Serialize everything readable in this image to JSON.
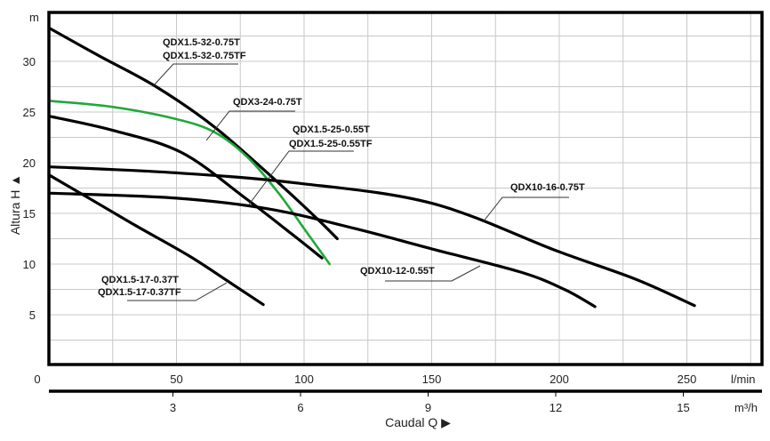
{
  "chart_data": {
    "type": "line",
    "title": "",
    "xlabel": "Caudal Q ▶",
    "ylabel": "Altura H ▲",
    "y_unit": "m",
    "x_unit": "l/min",
    "x2_unit": "m³/h",
    "xlim": [
      0,
      280
    ],
    "ylim": [
      0,
      35
    ],
    "grid": true,
    "x_ticks": [
      "0",
      "50",
      "100",
      "150",
      "200",
      "250"
    ],
    "x_tick_values": [
      0,
      50,
      100,
      150,
      200,
      250
    ],
    "x2_ticks": [
      "3",
      "6",
      "9",
      "12",
      "15"
    ],
    "x2_tick_values": [
      3,
      6,
      9,
      12,
      15
    ],
    "y_ticks": [
      "5",
      "10",
      "15",
      "20",
      "25",
      "30"
    ],
    "y_tick_values": [
      5,
      10,
      15,
      20,
      25,
      30
    ],
    "series": [
      {
        "name": "QDX1.5-32-0.75T / QDX1.5-32-0.75TF",
        "labels": [
          "QDX1.5-32-0.75T",
          "QDX1.5-32-0.75TF"
        ],
        "color": "#000000",
        "x": [
          0,
          20,
          42,
          65,
          90,
          105,
          113
        ],
        "y": [
          33.3,
          30.5,
          27.5,
          23.5,
          18,
          14.5,
          12.5
        ]
      },
      {
        "name": "QDX3-24-0.75T",
        "labels": [
          "QDX3-24-0.75T"
        ],
        "color": "#22a83a",
        "x": [
          0,
          25,
          50,
          65,
          78,
          90,
          100,
          110
        ],
        "y": [
          26.1,
          25.5,
          24.3,
          23,
          20.5,
          17,
          13.5,
          10
        ]
      },
      {
        "name": "QDX1.5-25-0.55T / QDX1.5-25-0.55TF",
        "labels": [
          "QDX1.5-25-0.55T",
          "QDX1.5-25-0.55TF"
        ],
        "color": "#000000",
        "x": [
          0,
          25,
          52,
          77,
          95,
          107
        ],
        "y": [
          24.6,
          23.2,
          21,
          16.5,
          13,
          10.6
        ]
      },
      {
        "name": "QDX10-16-0.75T",
        "labels": [
          "QDX10-16-0.75T"
        ],
        "color": "#000000",
        "x": [
          0,
          50,
          97,
          150,
          199,
          230,
          253
        ],
        "y": [
          19.6,
          19,
          18,
          16,
          11.3,
          8.5,
          5.9
        ]
      },
      {
        "name": "QDX10-12-0.55T",
        "labels": [
          "QDX10-12-0.55T"
        ],
        "color": "#000000",
        "x": [
          0,
          50,
          87,
          120,
          150,
          185,
          202,
          214
        ],
        "y": [
          17,
          16.5,
          15.4,
          13.5,
          11.5,
          9.2,
          7.5,
          5.8
        ]
      },
      {
        "name": "QDX1.5-17-0.37T / QDX1.5-17-0.37TF",
        "labels": [
          "QDX1.5-17-0.37T",
          "QDX1.5-17-0.37TF"
        ],
        "color": "#000000",
        "x": [
          0,
          15,
          34,
          55,
          72,
          84
        ],
        "y": [
          18.8,
          16.6,
          13.8,
          10.8,
          8,
          6
        ]
      }
    ]
  }
}
